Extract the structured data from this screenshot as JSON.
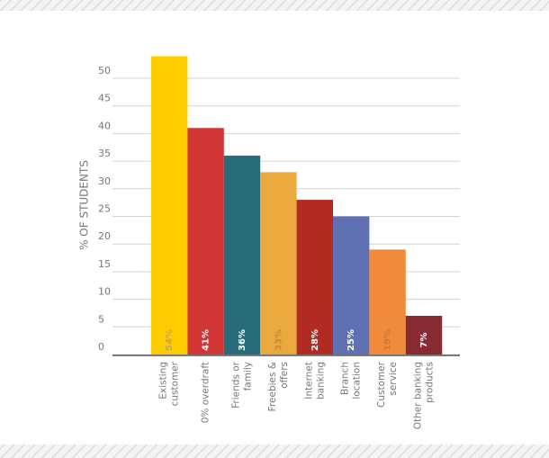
{
  "chart_data": {
    "type": "bar",
    "y_label": "% OF STUDENTS",
    "categories": [
      "Existing\ncustomer",
      "0% overdraft",
      "Friends or\nfamily",
      "Freebies &\noffers",
      "Internet\nbanking",
      "Branch\nlocation",
      "Customer\nservice",
      "Other banking\nproducts"
    ],
    "values": [
      54,
      41,
      36,
      33,
      28,
      25,
      19,
      7
    ],
    "value_labels": [
      "54%",
      "41%",
      "36%",
      "33%",
      "28%",
      "25%",
      "19%",
      "7%"
    ],
    "colors": [
      "#ffcc00",
      "#d13535",
      "#286b79",
      "#eaa93c",
      "#b22b23",
      "#5f71b2",
      "#ef8b3a",
      "#872a31"
    ],
    "value_label_colors": [
      "#c9a84a",
      "#ffffff",
      "#ffffff",
      "#c98a3a",
      "#ffffff",
      "#ffffff",
      "#c97a3a",
      "#ffffff"
    ],
    "ylim": [
      0,
      55
    ],
    "yticks": [
      0,
      5,
      10,
      15,
      20,
      25,
      30,
      35,
      40,
      45,
      50
    ],
    "grid": true
  }
}
